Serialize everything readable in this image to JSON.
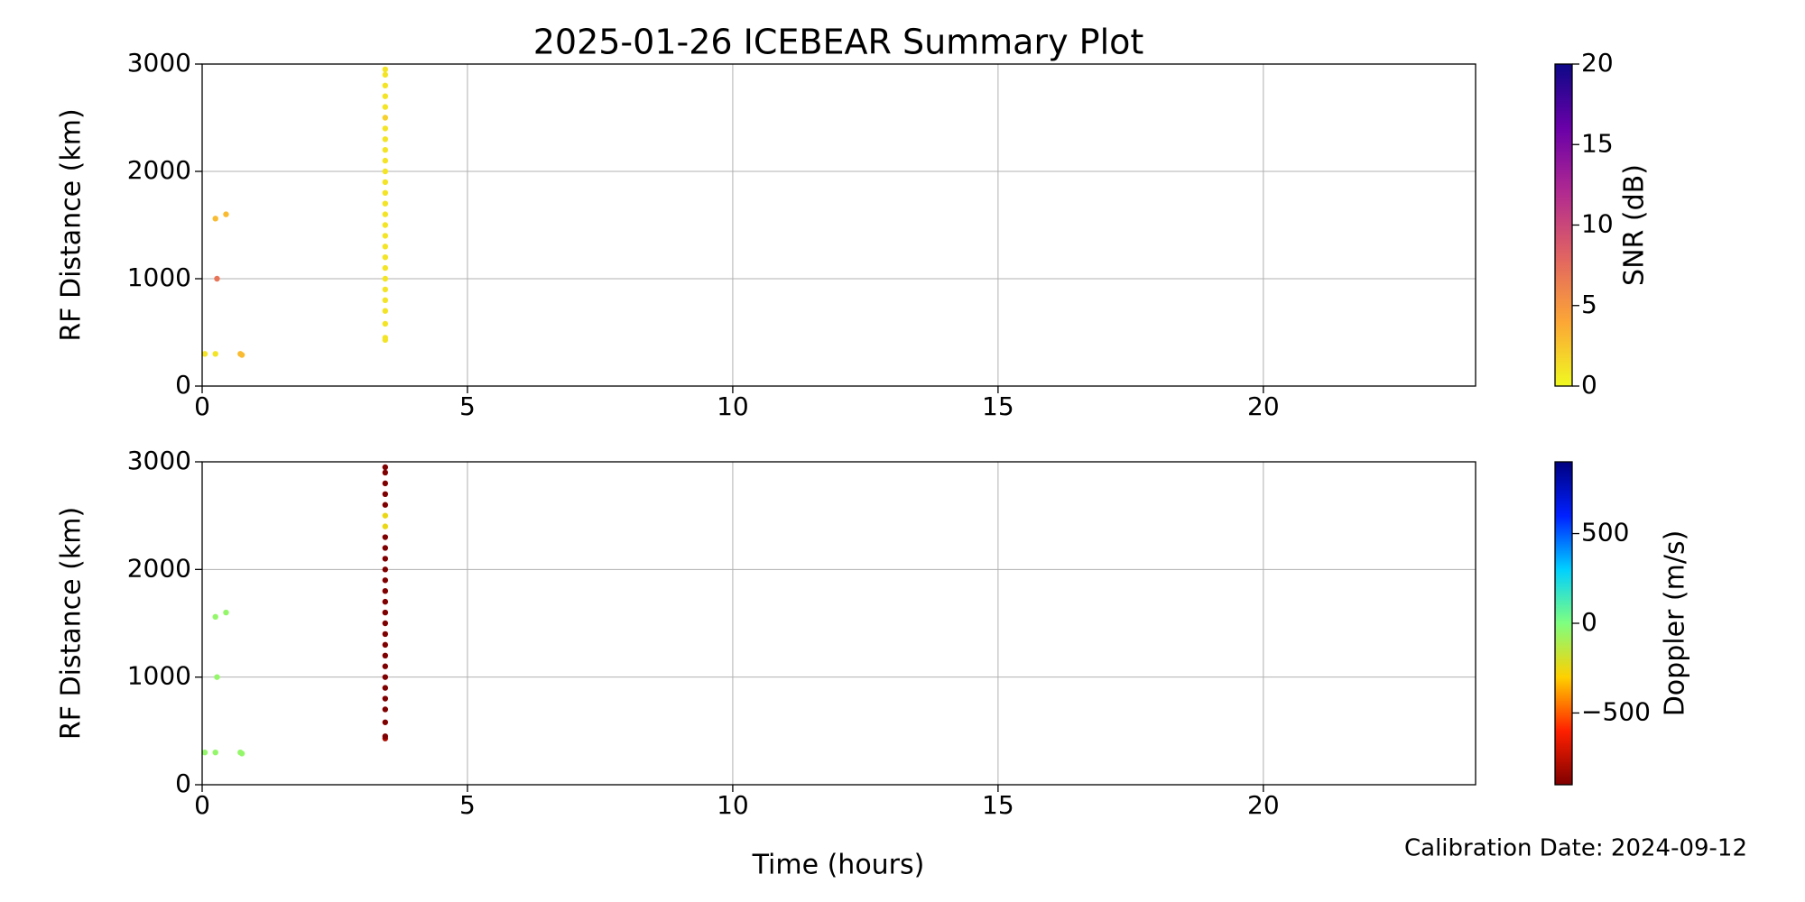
{
  "chart_data": [
    {
      "type": "scatter",
      "title": "2025-01-26 ICEBEAR Summary Plot",
      "y_label": "RF Distance (km)",
      "x": [
        0.05,
        0.25,
        0.72,
        0.75,
        0.28,
        0.25,
        0.45,
        3.45,
        3.45,
        3.45,
        3.45,
        3.45,
        3.45,
        3.45,
        3.45,
        3.45,
        3.45,
        3.45,
        3.45,
        3.45,
        3.45,
        3.45,
        3.45,
        3.45,
        3.45,
        3.45,
        3.45,
        3.45,
        3.45,
        3.45,
        3.45,
        3.45,
        3.45,
        3.45
      ],
      "values": [
        300,
        300,
        300,
        290,
        1000,
        1560,
        1600,
        430,
        450,
        580,
        700,
        800,
        900,
        1000,
        1100,
        1200,
        1300,
        1400,
        1500,
        1600,
        1700,
        1800,
        1900,
        2000,
        2100,
        2200,
        2300,
        2400,
        2500,
        2600,
        2700,
        2800,
        2900,
        2950
      ],
      "color_values": [
        1,
        1,
        3,
        3,
        7,
        3,
        3,
        1,
        1,
        1,
        1,
        1,
        1,
        1,
        1,
        1,
        1,
        1,
        1,
        1,
        1,
        1,
        1,
        1,
        1,
        1,
        1,
        1,
        2,
        1,
        1,
        1,
        1,
        1
      ],
      "xlim": [
        0,
        24
      ],
      "xticks": [
        0,
        5,
        10,
        15,
        20
      ],
      "ylim": [
        0,
        3000
      ],
      "yticks": [
        0,
        1000,
        2000,
        3000
      ],
      "grid": true,
      "colorbar": {
        "label": "SNR (dB)",
        "lim": [
          0,
          20
        ],
        "ticks": [
          0,
          5,
          10,
          15,
          20
        ],
        "colormap": [
          "#f0f921",
          "#fca636",
          "#e16462",
          "#b12a90",
          "#6a00a8",
          "#0d0887"
        ]
      }
    },
    {
      "type": "scatter",
      "y_label": "RF Distance (km)",
      "x_label": "Time (hours)",
      "annotation": "Calibration Date: 2024-09-12",
      "x": [
        0.05,
        0.25,
        0.72,
        0.75,
        0.28,
        0.25,
        0.45,
        3.45,
        3.45,
        3.45,
        3.45,
        3.45,
        3.45,
        3.45,
        3.45,
        3.45,
        3.45,
        3.45,
        3.45,
        3.45,
        3.45,
        3.45,
        3.45,
        3.45,
        3.45,
        3.45,
        3.45,
        3.45,
        3.45,
        3.45,
        3.45,
        3.45,
        3.45,
        3.45
      ],
      "values": [
        300,
        300,
        300,
        290,
        1000,
        1560,
        1600,
        430,
        450,
        580,
        700,
        800,
        900,
        1000,
        1100,
        1200,
        1300,
        1400,
        1500,
        1600,
        1700,
        1800,
        1900,
        2000,
        2100,
        2200,
        2300,
        2400,
        2500,
        2600,
        2700,
        2800,
        2900,
        2950
      ],
      "color_values": [
        -50,
        -50,
        -50,
        -50,
        -50,
        -50,
        -50,
        -800,
        -900,
        -900,
        -900,
        -900,
        -900,
        -900,
        -900,
        -900,
        -900,
        -900,
        -900,
        -900,
        -900,
        -900,
        -900,
        -900,
        -900,
        -900,
        -900,
        -250,
        -250,
        -900,
        -900,
        -900,
        -900,
        -900
      ],
      "xlim": [
        0,
        24
      ],
      "xticks": [
        0,
        5,
        10,
        15,
        20
      ],
      "ylim": [
        0,
        3000
      ],
      "yticks": [
        0,
        1000,
        2000,
        3000
      ],
      "grid": true,
      "colorbar": {
        "label": "Doppler (m/s)",
        "lim": [
          -900,
          900
        ],
        "ticks": [
          {
            "value": -500,
            "label": "−500"
          },
          0,
          500
        ],
        "colormap": [
          "#7f0000",
          "#ff2000",
          "#ffd000",
          "#7fff7f",
          "#00d0ff",
          "#0020ff",
          "#00007f"
        ]
      }
    }
  ]
}
